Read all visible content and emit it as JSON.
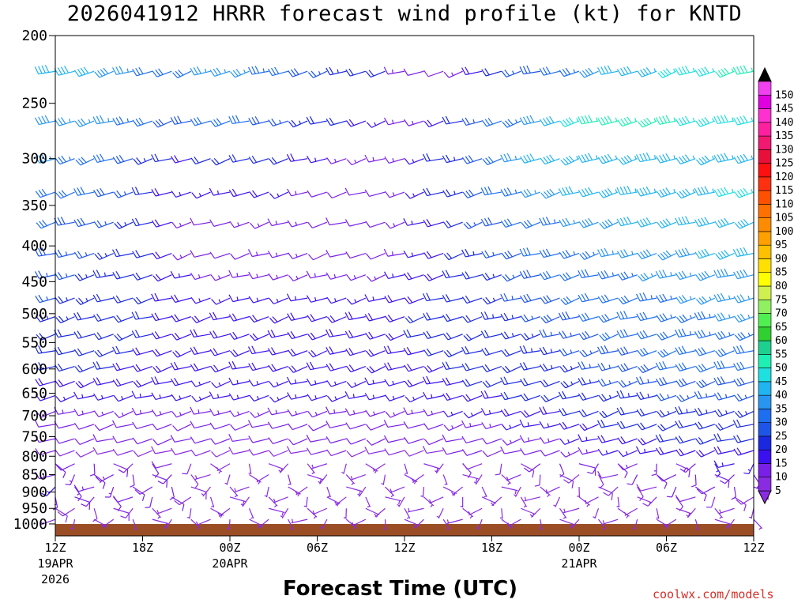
{
  "chart_data": {
    "type": "wind-barb-time-height",
    "title": "2026041912 HRRR forecast wind profile (kt) for KNTD",
    "xlabel": "Forecast Time (UTC)",
    "ylabel": "",
    "credit": "coolwx.com/models",
    "y_ticks": [
      200,
      250,
      300,
      350,
      400,
      450,
      500,
      550,
      600,
      650,
      700,
      750,
      800,
      850,
      900,
      950,
      1000
    ],
    "x_ticks": [
      {
        "hour": 0,
        "label": "12Z",
        "sub": "19APR",
        "sub2": "2026"
      },
      {
        "hour": 6,
        "label": "18Z",
        "sub": "",
        "sub2": ""
      },
      {
        "hour": 12,
        "label": "00Z",
        "sub": "20APR",
        "sub2": ""
      },
      {
        "hour": 18,
        "label": "06Z",
        "sub": "",
        "sub2": ""
      },
      {
        "hour": 24,
        "label": "12Z",
        "sub": "",
        "sub2": ""
      },
      {
        "hour": 30,
        "label": "18Z",
        "sub": "",
        "sub2": ""
      },
      {
        "hour": 36,
        "label": "00Z",
        "sub": "21APR",
        "sub2": ""
      },
      {
        "hour": 42,
        "label": "06Z",
        "sub": "",
        "sub2": ""
      },
      {
        "hour": 48,
        "label": "12Z",
        "sub": "",
        "sub2": ""
      }
    ],
    "x_range_hours": [
      0,
      48
    ],
    "y_range_hpa": [
      200,
      1040
    ],
    "y_scale": "log-pressure",
    "surface_color": "#9b4e26",
    "colorbar": {
      "levels": [
        5,
        10,
        15,
        20,
        25,
        30,
        35,
        40,
        45,
        50,
        55,
        60,
        65,
        70,
        75,
        80,
        85,
        90,
        95,
        100,
        105,
        110,
        115,
        120,
        125,
        130,
        135,
        140,
        145,
        150
      ],
      "colors": [
        "#8a2be2",
        "#7a1fe8",
        "#3a10f0",
        "#1a28e0",
        "#1e55e8",
        "#1e6ef0",
        "#2896f0",
        "#20b4f0",
        "#1ee0e0",
        "#1ef0b4",
        "#1ed090",
        "#30d030",
        "#50f050",
        "#90f060",
        "#d0f050",
        "#ffff00",
        "#ffe000",
        "#ffc000",
        "#ffa000",
        "#ff8c00",
        "#ff7000",
        "#ff5000",
        "#ff3010",
        "#ff1010",
        "#e8103a",
        "#f01870",
        "#ff20a0",
        "#ff30d0",
        "#e000e0",
        "#f040f0"
      ]
    },
    "wind_levels": [
      {
        "p": 225,
        "speed": [
          40,
          40,
          40,
          38,
          36,
          32,
          30,
          32,
          35,
          36,
          36,
          34,
          30,
          28,
          26,
          24,
          22,
          20,
          14,
          10,
          8,
          14,
          18,
          22,
          26,
          28,
          30,
          34,
          38,
          40,
          42,
          44,
          46,
          48,
          48,
          50,
          50
        ]
      },
      {
        "p": 265,
        "speed": [
          38,
          36,
          36,
          35,
          33,
          30,
          28,
          28,
          30,
          30,
          30,
          28,
          26,
          24,
          22,
          20,
          18,
          16,
          14,
          14,
          18,
          22,
          26,
          30,
          34,
          38,
          42,
          46,
          50,
          52,
          52,
          50,
          50,
          48,
          48,
          46,
          46
        ]
      },
      {
        "p": 300,
        "speed": [
          35,
          34,
          32,
          30,
          28,
          24,
          20,
          18,
          20,
          22,
          22,
          22,
          20,
          18,
          16,
          14,
          14,
          14,
          14,
          16,
          20,
          24,
          28,
          32,
          36,
          40,
          42,
          44,
          44,
          44,
          44,
          44,
          44,
          44,
          44,
          44,
          44
        ]
      },
      {
        "p": 335,
        "speed": [
          32,
          30,
          30,
          28,
          26,
          22,
          18,
          16,
          16,
          16,
          18,
          18,
          16,
          14,
          12,
          12,
          12,
          12,
          14,
          16,
          20,
          24,
          28,
          30,
          34,
          36,
          38,
          40,
          42,
          44,
          44,
          44,
          44,
          44,
          44,
          46,
          46
        ]
      },
      {
        "p": 370,
        "speed": [
          30,
          28,
          28,
          26,
          24,
          22,
          18,
          14,
          12,
          12,
          14,
          14,
          14,
          14,
          12,
          12,
          12,
          12,
          14,
          16,
          18,
          22,
          26,
          28,
          30,
          32,
          34,
          36,
          38,
          38,
          40,
          40,
          40,
          42,
          42,
          42,
          42
        ]
      },
      {
        "p": 410,
        "speed": [
          28,
          26,
          26,
          24,
          22,
          20,
          18,
          14,
          12,
          12,
          12,
          14,
          14,
          14,
          12,
          12,
          12,
          12,
          14,
          16,
          18,
          20,
          24,
          26,
          28,
          30,
          32,
          34,
          34,
          36,
          36,
          38,
          38,
          38,
          40,
          40,
          40
        ]
      },
      {
        "p": 440,
        "speed": [
          26,
          26,
          24,
          24,
          22,
          20,
          18,
          16,
          14,
          14,
          14,
          14,
          14,
          14,
          14,
          14,
          14,
          14,
          16,
          18,
          18,
          20,
          22,
          24,
          26,
          28,
          30,
          32,
          32,
          34,
          34,
          36,
          36,
          36,
          38,
          38,
          38
        ]
      },
      {
        "p": 475,
        "speed": [
          26,
          24,
          24,
          22,
          22,
          20,
          18,
          18,
          16,
          16,
          16,
          16,
          16,
          16,
          16,
          16,
          16,
          16,
          18,
          18,
          20,
          20,
          22,
          24,
          26,
          28,
          28,
          30,
          30,
          32,
          32,
          34,
          34,
          36,
          36,
          36,
          36
        ]
      },
      {
        "p": 505,
        "speed": [
          24,
          24,
          22,
          22,
          20,
          20,
          18,
          18,
          18,
          18,
          18,
          18,
          18,
          18,
          18,
          18,
          18,
          18,
          18,
          20,
          20,
          22,
          22,
          24,
          24,
          26,
          28,
          28,
          30,
          30,
          32,
          32,
          34,
          34,
          34,
          36,
          36
        ]
      },
      {
        "p": 535,
        "speed": [
          22,
          22,
          22,
          20,
          20,
          20,
          18,
          18,
          18,
          18,
          18,
          18,
          18,
          18,
          18,
          18,
          18,
          18,
          18,
          20,
          20,
          20,
          22,
          22,
          24,
          24,
          26,
          26,
          28,
          30,
          30,
          32,
          32,
          34,
          34,
          34,
          34
        ]
      },
      {
        "p": 565,
        "speed": [
          22,
          20,
          20,
          20,
          20,
          18,
          18,
          18,
          18,
          18,
          18,
          18,
          18,
          18,
          18,
          18,
          18,
          18,
          18,
          18,
          20,
          20,
          20,
          22,
          22,
          24,
          24,
          26,
          26,
          28,
          28,
          30,
          30,
          32,
          32,
          32,
          32
        ]
      },
      {
        "p": 595,
        "speed": [
          20,
          20,
          20,
          20,
          18,
          18,
          18,
          18,
          18,
          18,
          18,
          18,
          18,
          18,
          18,
          18,
          18,
          18,
          18,
          18,
          18,
          20,
          20,
          20,
          22,
          22,
          24,
          24,
          26,
          26,
          28,
          28,
          30,
          30,
          30,
          30,
          30
        ]
      },
      {
        "p": 625,
        "speed": [
          18,
          18,
          18,
          18,
          18,
          18,
          18,
          18,
          16,
          16,
          16,
          16,
          16,
          16,
          16,
          16,
          16,
          16,
          16,
          18,
          18,
          18,
          20,
          20,
          20,
          22,
          22,
          24,
          24,
          26,
          26,
          26,
          28,
          28,
          28,
          28,
          28
        ]
      },
      {
        "p": 655,
        "speed": [
          16,
          16,
          16,
          16,
          16,
          16,
          16,
          16,
          16,
          16,
          16,
          16,
          16,
          16,
          16,
          16,
          16,
          16,
          16,
          16,
          16,
          18,
          18,
          18,
          20,
          20,
          20,
          22,
          22,
          24,
          24,
          24,
          26,
          26,
          26,
          26,
          26
        ]
      },
      {
        "p": 690,
        "speed": [
          14,
          14,
          14,
          14,
          14,
          14,
          14,
          14,
          14,
          14,
          14,
          14,
          14,
          14,
          14,
          14,
          14,
          14,
          14,
          14,
          14,
          16,
          16,
          16,
          18,
          18,
          18,
          20,
          20,
          22,
          22,
          22,
          24,
          24,
          24,
          24,
          24
        ]
      },
      {
        "p": 720,
        "speed": [
          12,
          12,
          12,
          12,
          12,
          12,
          12,
          12,
          12,
          12,
          12,
          12,
          12,
          12,
          12,
          12,
          12,
          12,
          12,
          12,
          12,
          14,
          14,
          14,
          16,
          16,
          16,
          18,
          18,
          20,
          20,
          20,
          22,
          22,
          22,
          22,
          22
        ]
      },
      {
        "p": 755,
        "speed": [
          10,
          10,
          10,
          10,
          10,
          10,
          10,
          10,
          10,
          10,
          10,
          10,
          10,
          10,
          10,
          10,
          10,
          10,
          10,
          10,
          10,
          12,
          12,
          12,
          14,
          14,
          14,
          16,
          16,
          18,
          18,
          18,
          20,
          20,
          20,
          20,
          20
        ]
      },
      {
        "p": 785,
        "speed": [
          8,
          8,
          8,
          8,
          8,
          8,
          8,
          8,
          8,
          8,
          8,
          8,
          8,
          8,
          8,
          8,
          8,
          8,
          8,
          8,
          8,
          10,
          10,
          10,
          12,
          12,
          12,
          14,
          14,
          16,
          16,
          16,
          18,
          18,
          18,
          18,
          18
        ]
      },
      {
        "p": 820,
        "speed": [
          10,
          10,
          12,
          12,
          10,
          10,
          8,
          8,
          6,
          6,
          6,
          6,
          6,
          6,
          6,
          6,
          6,
          6,
          6,
          6,
          6,
          8,
          8,
          8,
          8,
          10,
          10,
          10,
          12,
          12,
          14,
          14,
          14,
          14,
          16,
          16,
          16
        ]
      },
      {
        "p": 850,
        "speed": [
          14,
          14,
          14,
          14,
          12,
          12,
          10,
          8,
          6,
          6,
          6,
          6,
          6,
          6,
          6,
          6,
          6,
          6,
          6,
          6,
          6,
          6,
          6,
          6,
          6,
          8,
          8,
          8,
          8,
          10,
          10,
          10,
          12,
          12,
          12,
          12,
          12
        ]
      },
      {
        "p": 885,
        "speed": [
          16,
          14,
          14,
          14,
          12,
          12,
          10,
          8,
          6,
          6,
          6,
          6,
          6,
          6,
          6,
          6,
          6,
          6,
          6,
          6,
          6,
          6,
          6,
          6,
          6,
          6,
          6,
          6,
          8,
          8,
          8,
          8,
          10,
          10,
          10,
          10,
          10
        ]
      },
      {
        "p": 915,
        "speed": [
          14,
          12,
          12,
          12,
          12,
          10,
          10,
          8,
          6,
          6,
          6,
          6,
          6,
          6,
          6,
          6,
          6,
          6,
          6,
          6,
          6,
          6,
          6,
          6,
          6,
          6,
          6,
          6,
          6,
          6,
          6,
          8,
          8,
          8,
          8,
          8,
          8
        ]
      },
      {
        "p": 950,
        "speed": [
          8,
          8,
          8,
          8,
          8,
          6,
          6,
          6,
          6,
          6,
          6,
          6,
          6,
          6,
          6,
          6,
          6,
          6,
          6,
          6,
          6,
          6,
          6,
          6,
          6,
          6,
          6,
          6,
          6,
          6,
          6,
          6,
          6,
          6,
          6,
          6,
          6
        ]
      },
      {
        "p": 985,
        "speed": [
          6,
          6,
          6,
          6,
          6,
          6,
          6,
          6,
          6,
          6,
          6,
          6,
          6,
          6,
          6,
          6,
          6,
          6,
          6,
          6,
          6,
          6,
          6,
          6,
          6,
          6,
          6,
          6,
          6,
          6,
          6,
          6,
          6,
          6,
          6,
          6,
          6
        ]
      }
    ],
    "wind_columns_hours": [
      0,
      1.33,
      2.67,
      4,
      5.33,
      6.67,
      8,
      9.33,
      10.67,
      12,
      13.33,
      14.67,
      16,
      17.33,
      18.67,
      20,
      21.33,
      22.67,
      24,
      25.33,
      26.67,
      28,
      29.33,
      30.67,
      32,
      33.33,
      34.67,
      36,
      37.33,
      38.67,
      40,
      41.33,
      42.67,
      44,
      45.33,
      46.67,
      48
    ]
  }
}
